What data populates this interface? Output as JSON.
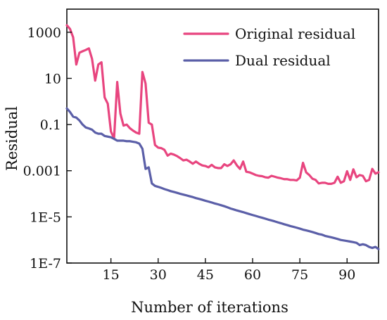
{
  "chart_data": {
    "type": "line",
    "title": "",
    "xlabel": "Number of iterations",
    "ylabel": "Residual",
    "xlim": [
      1,
      100
    ],
    "ylim": [
      1e-07,
      10000
    ],
    "yscale": "log",
    "grid": false,
    "legend_position": "top-right",
    "x_ticks": [
      15,
      30,
      45,
      60,
      75,
      90
    ],
    "x_tick_labels": [
      "15",
      "30",
      "45",
      "60",
      "75",
      "90"
    ],
    "y_ticks": [
      1e-07,
      1e-05,
      0.001,
      0.1,
      10,
      1000
    ],
    "y_tick_labels": [
      "1E-7",
      "1E-5",
      "0.001",
      "0.1",
      "10",
      "1000"
    ],
    "x": [
      1,
      2,
      3,
      4,
      5,
      6,
      7,
      8,
      9,
      10,
      11,
      12,
      13,
      14,
      15,
      16,
      17,
      18,
      19,
      20,
      21,
      22,
      23,
      24,
      25,
      26,
      27,
      28,
      29,
      30,
      31,
      32,
      33,
      34,
      35,
      36,
      37,
      38,
      39,
      40,
      41,
      42,
      43,
      44,
      45,
      46,
      47,
      48,
      49,
      50,
      51,
      52,
      53,
      54,
      55,
      56,
      57,
      58,
      59,
      60,
      61,
      62,
      63,
      64,
      65,
      66,
      67,
      68,
      69,
      70,
      71,
      72,
      73,
      74,
      75,
      76,
      77,
      78,
      79,
      80,
      81,
      82,
      83,
      84,
      85,
      86,
      87,
      88,
      89,
      90,
      91,
      92,
      93,
      94,
      95,
      96,
      97,
      98,
      99,
      100
    ],
    "series": [
      {
        "name": "Original residual",
        "color": "#e8457f",
        "values": [
          2000,
          1400,
          600,
          40,
          130,
          150,
          170,
          200,
          70,
          8,
          40,
          50,
          1.5,
          0.8,
          0.05,
          0.025,
          7,
          0.3,
          0.09,
          0.1,
          0.07,
          0.055,
          0.045,
          0.04,
          19,
          6,
          0.12,
          0.1,
          0.013,
          0.01,
          0.0095,
          0.008,
          0.0045,
          0.0055,
          0.005,
          0.0043,
          0.0035,
          0.0028,
          0.003,
          0.0025,
          0.002,
          0.0025,
          0.002,
          0.0017,
          0.0016,
          0.0014,
          0.0018,
          0.0014,
          0.0013,
          0.0013,
          0.0019,
          0.0016,
          0.0019,
          0.0028,
          0.0017,
          0.0012,
          0.0025,
          0.0009,
          0.00085,
          0.00075,
          0.00065,
          0.0006,
          0.00058,
          0.00052,
          0.0005,
          0.0006,
          0.00055,
          0.0005,
          0.00047,
          0.00043,
          0.00043,
          0.0004,
          0.0004,
          0.00038,
          0.0005,
          0.0022,
          0.00085,
          0.00065,
          0.00045,
          0.0004,
          0.00028,
          0.0003,
          0.0003,
          0.00027,
          0.00027,
          0.0003,
          0.00055,
          0.0003,
          0.00035,
          0.00095,
          0.0004,
          0.00115,
          0.00052,
          0.00065,
          0.0006,
          0.00035,
          0.0004,
          0.0012,
          0.00075,
          0.00085
        ]
      },
      {
        "name": "Dual residual",
        "color": "#5b5fa8",
        "values": [
          0.5,
          0.35,
          0.22,
          0.2,
          0.15,
          0.1,
          0.075,
          0.068,
          0.06,
          0.045,
          0.04,
          0.04,
          0.032,
          0.03,
          0.028,
          0.024,
          0.02,
          0.02,
          0.02,
          0.019,
          0.019,
          0.018,
          0.017,
          0.015,
          0.009,
          0.0012,
          0.0014,
          0.00028,
          0.00022,
          0.0002,
          0.00018,
          0.00016,
          0.000145,
          0.00013,
          0.00012,
          0.00011,
          0.0001,
          9.2e-05,
          8.5e-05,
          7.8e-05,
          7.2e-05,
          6.5e-05,
          6e-05,
          5.5e-05,
          5e-05,
          4.6e-05,
          4.2e-05,
          3.8e-05,
          3.5e-05,
          3.2e-05,
          2.9e-05,
          2.6e-05,
          2.3e-05,
          2.1e-05,
          1.9e-05,
          1.75e-05,
          1.6e-05,
          1.45e-05,
          1.32e-05,
          1.2e-05,
          1.1e-05,
          1e-05,
          9.2e-06,
          8.4e-06,
          7.6e-06,
          7e-06,
          6.4e-06,
          5.8e-06,
          5.3e-06,
          4.8e-06,
          4.4e-06,
          4e-06,
          3.7e-06,
          3.4e-06,
          3.1e-06,
          2.8e-06,
          2.6e-06,
          2.4e-06,
          2.2e-06,
          2e-06,
          1.8e-06,
          1.7e-06,
          1.5e-06,
          1.4e-06,
          1.3e-06,
          1.2e-06,
          1.1e-06,
          1e-06,
          9.5e-07,
          9e-07,
          8.5e-07,
          8e-07,
          7.5e-07,
          6e-07,
          6.5e-07,
          6e-07,
          5e-07,
          4.5e-07,
          5e-07,
          4e-07
        ]
      }
    ]
  }
}
